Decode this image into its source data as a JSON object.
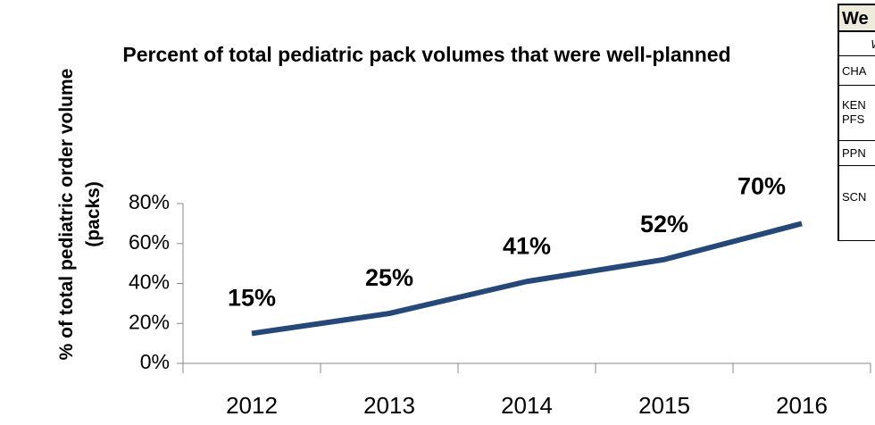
{
  "chart_data": {
    "type": "line",
    "title": "Percent of total pediatric pack volumes that were well-planned",
    "y_label": "% of total pediatric order volume (packs)",
    "categories": [
      "2012",
      "2013",
      "2014",
      "2015",
      "2016"
    ],
    "values": [
      15,
      25,
      41,
      52,
      70
    ],
    "value_labels": [
      "15%",
      "25%",
      "41%",
      "52%",
      "70%"
    ],
    "color": "#264878",
    "ylim": [
      0,
      80
    ],
    "yticks": [
      {
        "value": 0,
        "label": "0%"
      },
      {
        "value": 20,
        "label": "20%"
      },
      {
        "value": 40,
        "label": "40%"
      },
      {
        "value": 60,
        "label": "60%"
      },
      {
        "value": 80,
        "label": "80%"
      }
    ],
    "grid": false
  },
  "table": {
    "header": "We",
    "rows": [
      "W",
      "CHA",
      "KEN PFS",
      "PPN",
      "SCN"
    ]
  }
}
